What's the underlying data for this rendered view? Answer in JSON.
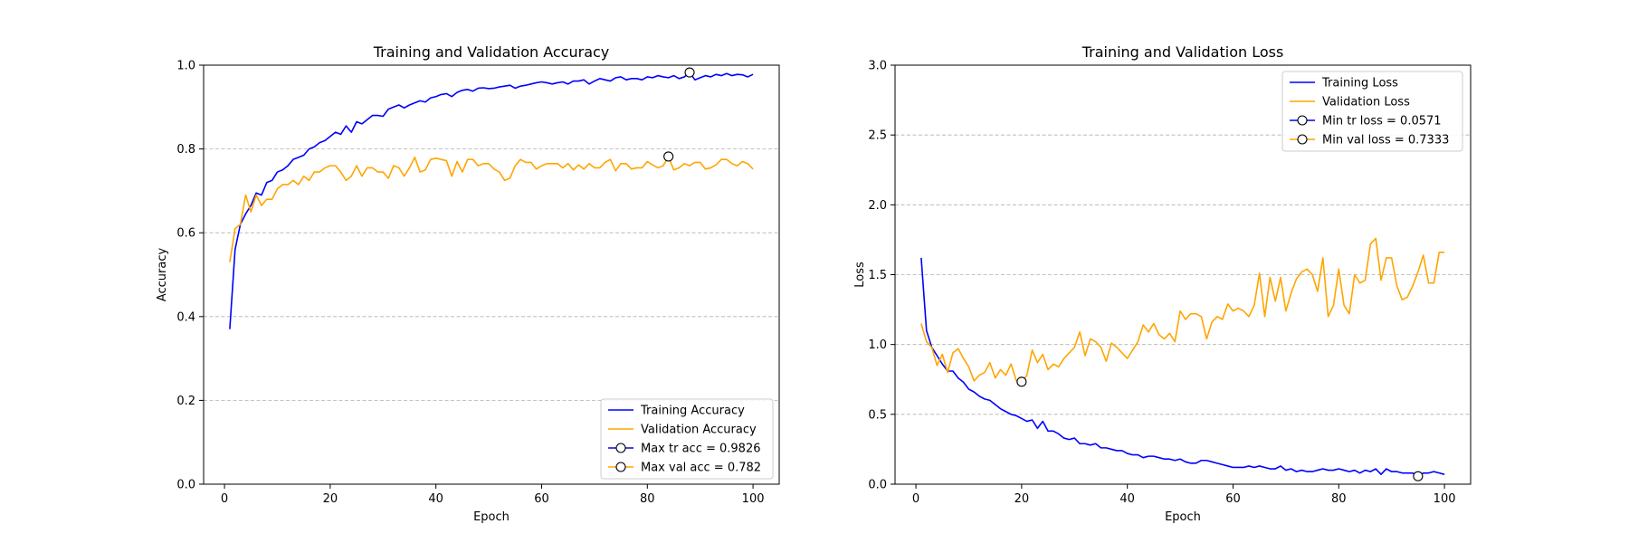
{
  "chart_data": [
    {
      "type": "line",
      "title": "Training and Validation Accuracy",
      "xlabel": "Epoch",
      "ylabel": "Accuracy",
      "xlim": [
        -3.95,
        104.95
      ],
      "ylim": [
        0.0,
        1.0
      ],
      "xticks": [
        0,
        20,
        40,
        60,
        80,
        100
      ],
      "yticks": [
        0.0,
        0.2,
        0.4,
        0.6,
        0.8,
        1.0
      ],
      "xtick_labels": [
        "0",
        "20",
        "40",
        "60",
        "80",
        "100"
      ],
      "ytick_labels": [
        "0.0",
        "0.2",
        "0.4",
        "0.6",
        "0.8",
        "1.0"
      ],
      "grid": "y-dashed",
      "legend_position": "lower-right",
      "series": [
        {
          "name": "Training Accuracy",
          "color": "#0000ff",
          "x": [
            1,
            2,
            3,
            4,
            5,
            6,
            7,
            8,
            9,
            10,
            11,
            12,
            13,
            14,
            15,
            16,
            17,
            18,
            19,
            20,
            21,
            22,
            23,
            24,
            25,
            26,
            27,
            28,
            29,
            30,
            31,
            32,
            33,
            34,
            35,
            36,
            37,
            38,
            39,
            40,
            41,
            42,
            43,
            44,
            45,
            46,
            47,
            48,
            49,
            50,
            51,
            52,
            53,
            54,
            55,
            56,
            57,
            58,
            59,
            60,
            61,
            62,
            63,
            64,
            65,
            66,
            67,
            68,
            69,
            70,
            71,
            72,
            73,
            74,
            75,
            76,
            77,
            78,
            79,
            80,
            81,
            82,
            83,
            84,
            85,
            86,
            87,
            88,
            89,
            90,
            91,
            92,
            93,
            94,
            95,
            96,
            97,
            98,
            99,
            100
          ],
          "values": [
            0.37,
            0.56,
            0.62,
            0.645,
            0.665,
            0.695,
            0.69,
            0.72,
            0.725,
            0.745,
            0.75,
            0.76,
            0.775,
            0.78,
            0.785,
            0.8,
            0.805,
            0.815,
            0.82,
            0.83,
            0.84,
            0.835,
            0.855,
            0.84,
            0.865,
            0.86,
            0.87,
            0.88,
            0.88,
            0.878,
            0.895,
            0.9,
            0.905,
            0.898,
            0.905,
            0.91,
            0.915,
            0.912,
            0.922,
            0.925,
            0.93,
            0.932,
            0.925,
            0.935,
            0.94,
            0.942,
            0.938,
            0.945,
            0.946,
            0.944,
            0.945,
            0.948,
            0.95,
            0.952,
            0.945,
            0.95,
            0.952,
            0.955,
            0.958,
            0.96,
            0.958,
            0.955,
            0.958,
            0.96,
            0.955,
            0.962,
            0.962,
            0.965,
            0.955,
            0.962,
            0.968,
            0.965,
            0.962,
            0.97,
            0.972,
            0.965,
            0.968,
            0.968,
            0.965,
            0.972,
            0.97,
            0.975,
            0.972,
            0.97,
            0.975,
            0.968,
            0.972,
            0.9826,
            0.965,
            0.97,
            0.975,
            0.972,
            0.978,
            0.975,
            0.98,
            0.975,
            0.978,
            0.977,
            0.972,
            0.978
          ]
        },
        {
          "name": "Validation Accuracy",
          "color": "#ffa500",
          "x": [
            1,
            2,
            3,
            4,
            5,
            6,
            7,
            8,
            9,
            10,
            11,
            12,
            13,
            14,
            15,
            16,
            17,
            18,
            19,
            20,
            21,
            22,
            23,
            24,
            25,
            26,
            27,
            28,
            29,
            30,
            31,
            32,
            33,
            34,
            35,
            36,
            37,
            38,
            39,
            40,
            41,
            42,
            43,
            44,
            45,
            46,
            47,
            48,
            49,
            50,
            51,
            52,
            53,
            54,
            55,
            56,
            57,
            58,
            59,
            60,
            61,
            62,
            63,
            64,
            65,
            66,
            67,
            68,
            69,
            70,
            71,
            72,
            73,
            74,
            75,
            76,
            77,
            78,
            79,
            80,
            81,
            82,
            83,
            84,
            85,
            86,
            87,
            88,
            89,
            90,
            91,
            92,
            93,
            94,
            95,
            96,
            97,
            98,
            99,
            100
          ],
          "values": [
            0.53,
            0.61,
            0.62,
            0.69,
            0.65,
            0.69,
            0.665,
            0.68,
            0.68,
            0.705,
            0.715,
            0.715,
            0.725,
            0.715,
            0.735,
            0.725,
            0.745,
            0.745,
            0.755,
            0.76,
            0.76,
            0.745,
            0.725,
            0.735,
            0.76,
            0.735,
            0.755,
            0.755,
            0.745,
            0.745,
            0.73,
            0.76,
            0.755,
            0.735,
            0.755,
            0.78,
            0.745,
            0.75,
            0.775,
            0.778,
            0.775,
            0.772,
            0.735,
            0.77,
            0.745,
            0.775,
            0.775,
            0.76,
            0.765,
            0.765,
            0.752,
            0.745,
            0.725,
            0.73,
            0.76,
            0.775,
            0.768,
            0.768,
            0.752,
            0.76,
            0.765,
            0.765,
            0.765,
            0.755,
            0.765,
            0.75,
            0.762,
            0.752,
            0.765,
            0.755,
            0.755,
            0.768,
            0.775,
            0.748,
            0.765,
            0.765,
            0.752,
            0.755,
            0.755,
            0.77,
            0.762,
            0.755,
            0.76,
            0.782,
            0.75,
            0.755,
            0.765,
            0.76,
            0.768,
            0.768,
            0.752,
            0.755,
            0.762,
            0.775,
            0.775,
            0.765,
            0.76,
            0.77,
            0.765,
            0.752
          ]
        }
      ],
      "markers": [
        {
          "name": "Max tr acc = 0.9826",
          "line_color": "#0000ff",
          "x": 88,
          "y": 0.9826
        },
        {
          "name": "Max val acc = 0.782",
          "line_color": "#ffa500",
          "x": 84,
          "y": 0.782
        }
      ]
    },
    {
      "type": "line",
      "title": "Training and Validation Loss",
      "xlabel": "Epoch",
      "ylabel": "Loss",
      "xlim": [
        -3.95,
        104.95
      ],
      "ylim": [
        0.0,
        3.0
      ],
      "xticks": [
        0,
        20,
        40,
        60,
        80,
        100
      ],
      "yticks": [
        0.0,
        0.5,
        1.0,
        1.5,
        2.0,
        2.5,
        3.0
      ],
      "xtick_labels": [
        "0",
        "20",
        "40",
        "60",
        "80",
        "100"
      ],
      "ytick_labels": [
        "0.0",
        "0.5",
        "1.0",
        "1.5",
        "2.0",
        "2.5",
        "3.0"
      ],
      "grid": "y-dashed",
      "legend_position": "upper-right",
      "series": [
        {
          "name": "Training Loss",
          "color": "#0000ff",
          "x": [
            1,
            2,
            3,
            4,
            5,
            6,
            7,
            8,
            9,
            10,
            11,
            12,
            13,
            14,
            15,
            16,
            17,
            18,
            19,
            20,
            21,
            22,
            23,
            24,
            25,
            26,
            27,
            28,
            29,
            30,
            31,
            32,
            33,
            34,
            35,
            36,
            37,
            38,
            39,
            40,
            41,
            42,
            43,
            44,
            45,
            46,
            47,
            48,
            49,
            50,
            51,
            52,
            53,
            54,
            55,
            56,
            57,
            58,
            59,
            60,
            61,
            62,
            63,
            64,
            65,
            66,
            67,
            68,
            69,
            70,
            71,
            72,
            73,
            74,
            75,
            76,
            77,
            78,
            79,
            80,
            81,
            82,
            83,
            84,
            85,
            86,
            87,
            88,
            89,
            90,
            91,
            92,
            93,
            94,
            95,
            96,
            97,
            98,
            99,
            100
          ],
          "values": [
            1.62,
            1.1,
            0.98,
            0.92,
            0.86,
            0.81,
            0.81,
            0.76,
            0.73,
            0.68,
            0.66,
            0.63,
            0.61,
            0.6,
            0.57,
            0.54,
            0.52,
            0.5,
            0.49,
            0.47,
            0.45,
            0.46,
            0.4,
            0.45,
            0.38,
            0.38,
            0.36,
            0.33,
            0.32,
            0.33,
            0.29,
            0.29,
            0.28,
            0.29,
            0.26,
            0.26,
            0.25,
            0.24,
            0.24,
            0.22,
            0.21,
            0.21,
            0.19,
            0.2,
            0.2,
            0.19,
            0.18,
            0.18,
            0.17,
            0.18,
            0.16,
            0.15,
            0.15,
            0.17,
            0.17,
            0.16,
            0.15,
            0.14,
            0.13,
            0.12,
            0.12,
            0.12,
            0.13,
            0.12,
            0.13,
            0.12,
            0.11,
            0.11,
            0.13,
            0.1,
            0.11,
            0.09,
            0.1,
            0.09,
            0.09,
            0.1,
            0.11,
            0.1,
            0.1,
            0.11,
            0.1,
            0.09,
            0.1,
            0.08,
            0.1,
            0.09,
            0.11,
            0.07,
            0.11,
            0.09,
            0.09,
            0.08,
            0.08,
            0.08,
            0.0571,
            0.08,
            0.08,
            0.09,
            0.08,
            0.07
          ]
        },
        {
          "name": "Validation Loss",
          "color": "#ffa500",
          "x": [
            1,
            2,
            3,
            4,
            5,
            6,
            7,
            8,
            9,
            10,
            11,
            12,
            13,
            14,
            15,
            16,
            17,
            18,
            19,
            20,
            21,
            22,
            23,
            24,
            25,
            26,
            27,
            28,
            29,
            30,
            31,
            32,
            33,
            34,
            35,
            36,
            37,
            38,
            39,
            40,
            41,
            42,
            43,
            44,
            45,
            46,
            47,
            48,
            49,
            50,
            51,
            52,
            53,
            54,
            55,
            56,
            57,
            58,
            59,
            60,
            61,
            62,
            63,
            64,
            65,
            66,
            67,
            68,
            69,
            70,
            71,
            72,
            73,
            74,
            75,
            76,
            77,
            78,
            79,
            80,
            81,
            82,
            83,
            84,
            85,
            86,
            87,
            88,
            89,
            90,
            91,
            92,
            93,
            94,
            95,
            96,
            97,
            98,
            99,
            100
          ],
          "values": [
            1.15,
            1.02,
            0.98,
            0.85,
            0.93,
            0.8,
            0.94,
            0.97,
            0.9,
            0.84,
            0.74,
            0.78,
            0.8,
            0.87,
            0.76,
            0.82,
            0.78,
            0.86,
            0.74,
            0.7333,
            0.78,
            0.96,
            0.87,
            0.93,
            0.82,
            0.86,
            0.84,
            0.9,
            0.94,
            0.98,
            1.09,
            0.92,
            1.04,
            1.02,
            0.98,
            0.88,
            1.01,
            0.98,
            0.94,
            0.9,
            0.96,
            1.02,
            1.14,
            1.09,
            1.15,
            1.07,
            1.04,
            1.08,
            1.02,
            1.24,
            1.18,
            1.22,
            1.22,
            1.2,
            1.04,
            1.16,
            1.2,
            1.18,
            1.29,
            1.24,
            1.26,
            1.24,
            1.2,
            1.28,
            1.51,
            1.2,
            1.48,
            1.31,
            1.48,
            1.24,
            1.37,
            1.47,
            1.52,
            1.54,
            1.5,
            1.38,
            1.62,
            1.2,
            1.28,
            1.54,
            1.28,
            1.22,
            1.5,
            1.44,
            1.46,
            1.72,
            1.76,
            1.46,
            1.62,
            1.62,
            1.42,
            1.32,
            1.34,
            1.42,
            1.52,
            1.64,
            1.44,
            1.44,
            1.66,
            1.66
          ]
        }
      ],
      "markers": [
        {
          "name": "Min tr loss = 0.0571",
          "line_color": "#0000ff",
          "x": 95,
          "y": 0.0571
        },
        {
          "name": "Min val loss = 0.7333",
          "line_color": "#ffa500",
          "x": 20,
          "y": 0.7333
        }
      ]
    }
  ]
}
